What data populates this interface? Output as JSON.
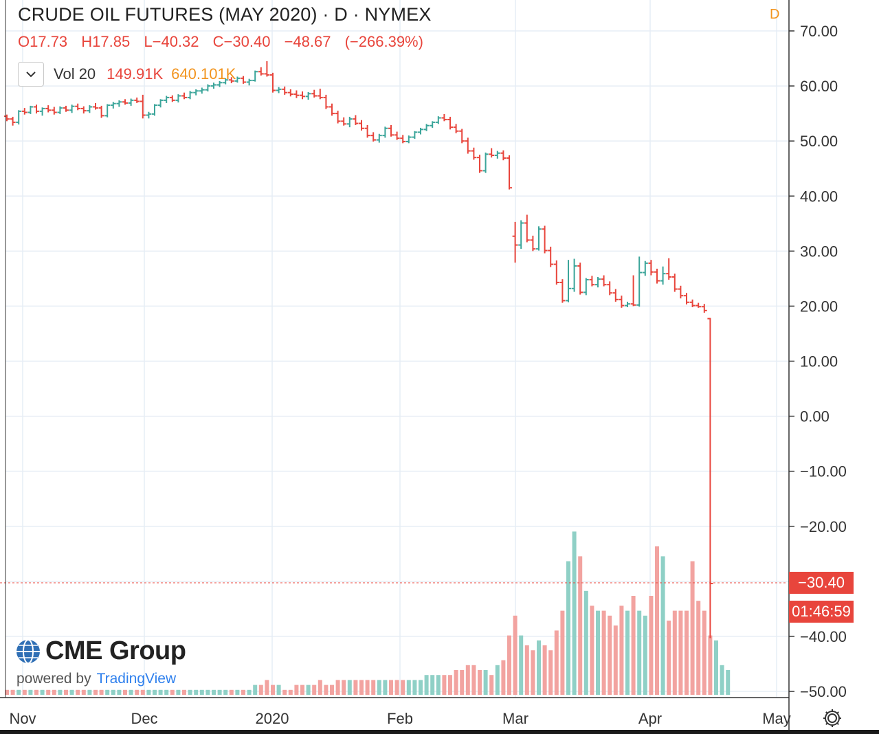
{
  "header": {
    "title": "CRUDE OIL FUTURES (MAY 2020) · D · NYMEX",
    "flag": "D"
  },
  "ohlc": {
    "open": "O17.73",
    "high": "H17.85",
    "low": "L−40.32",
    "close": "C−30.40",
    "change": "−48.67",
    "change_pct": "(−266.39%)"
  },
  "volume": {
    "label": "Vol 20",
    "value": "149.91K",
    "ma": "640.101K"
  },
  "branding": {
    "logo": "CME Group",
    "powered_by": "powered by",
    "tradingview": "TradingView"
  },
  "last_price": {
    "price": "−30.40",
    "countdown": "01:46:59"
  },
  "colors": {
    "up": "#3ba59a",
    "down": "#e8453c",
    "up_vol": "#8fd0c6",
    "down_vol": "#f2a3a0",
    "grid": "#e6edf5",
    "accent": "#f2941e"
  },
  "icons": {
    "toggle": "chevron-down-icon",
    "settings": "gear-icon",
    "logo": "globe-icon"
  },
  "chart_data": {
    "type": "ohlc",
    "ylim": [
      -50,
      70
    ],
    "y_ticks": [
      "70.00",
      "60.00",
      "50.00",
      "40.00",
      "30.00",
      "20.00",
      "10.00",
      "0.00",
      "−10.00",
      "−20.00",
      "−30.00",
      "−40.00",
      "−50.00"
    ],
    "x_ticks": [
      "Nov",
      "Dec",
      "2020",
      "Feb",
      "Mar",
      "Apr",
      "May"
    ],
    "series": [
      {
        "name": "price",
        "values": [
          [
            54.5,
            54.8,
            53.6,
            54.0
          ],
          [
            54.0,
            54.4,
            52.8,
            53.4
          ],
          [
            53.4,
            55.6,
            53.0,
            55.4
          ],
          [
            55.4,
            56.0,
            54.8,
            55.2
          ],
          [
            55.2,
            56.4,
            54.9,
            56.2
          ],
          [
            56.2,
            56.6,
            55.0,
            55.4
          ],
          [
            55.4,
            56.1,
            54.6,
            55.9
          ],
          [
            55.9,
            56.5,
            55.2,
            55.6
          ],
          [
            55.6,
            56.2,
            54.8,
            55.2
          ],
          [
            55.2,
            56.3,
            54.9,
            56.0
          ],
          [
            56.0,
            56.4,
            55.3,
            55.6
          ],
          [
            55.6,
            56.6,
            55.1,
            56.3
          ],
          [
            56.3,
            56.8,
            55.6,
            55.9
          ],
          [
            55.9,
            56.3,
            55.0,
            55.5
          ],
          [
            55.5,
            56.5,
            55.1,
            56.2
          ],
          [
            56.2,
            56.9,
            55.7,
            56.0
          ],
          [
            56.0,
            56.4,
            54.2,
            54.6
          ],
          [
            54.6,
            56.7,
            54.3,
            56.5
          ],
          [
            56.5,
            57.1,
            55.9,
            56.8
          ],
          [
            56.8,
            57.4,
            56.2,
            57.1
          ],
          [
            57.1,
            57.6,
            56.6,
            56.9
          ],
          [
            56.9,
            57.7,
            56.4,
            57.4
          ],
          [
            57.4,
            57.9,
            56.9,
            57.2
          ],
          [
            57.2,
            58.4,
            54.1,
            54.7
          ],
          [
            54.7,
            55.3,
            54.1,
            54.9
          ],
          [
            54.9,
            56.7,
            54.6,
            56.5
          ],
          [
            56.5,
            57.6,
            56.1,
            57.4
          ],
          [
            57.4,
            58.2,
            56.9,
            57.9
          ],
          [
            57.9,
            58.3,
            57.1,
            57.4
          ],
          [
            57.4,
            58.5,
            57.0,
            58.2
          ],
          [
            58.2,
            58.8,
            57.6,
            57.9
          ],
          [
            57.9,
            59.1,
            57.6,
            58.8
          ],
          [
            58.8,
            59.4,
            58.3,
            59.1
          ],
          [
            59.1,
            59.7,
            58.6,
            59.3
          ],
          [
            59.3,
            60.3,
            59.0,
            60.0
          ],
          [
            60.0,
            60.6,
            59.5,
            60.2
          ],
          [
            60.2,
            60.9,
            59.8,
            60.6
          ],
          [
            60.6,
            61.4,
            60.3,
            61.1
          ],
          [
            61.1,
            61.6,
            60.5,
            60.9
          ],
          [
            60.9,
            61.7,
            60.6,
            61.4
          ],
          [
            61.4,
            61.8,
            60.4,
            60.7
          ],
          [
            60.7,
            61.3,
            60.1,
            61.0
          ],
          [
            61.0,
            62.8,
            60.8,
            62.6
          ],
          [
            62.6,
            63.4,
            61.9,
            62.2
          ],
          [
            62.2,
            64.5,
            61.7,
            62.0
          ],
          [
            62.0,
            62.4,
            58.8,
            59.2
          ],
          [
            59.2,
            59.8,
            58.7,
            59.4
          ],
          [
            59.4,
            59.9,
            58.4,
            58.8
          ],
          [
            58.8,
            59.4,
            58.1,
            58.5
          ],
          [
            58.5,
            59.2,
            57.8,
            58.3
          ],
          [
            58.3,
            59.0,
            57.6,
            58.1
          ],
          [
            58.1,
            58.9,
            57.5,
            58.6
          ],
          [
            58.6,
            59.3,
            57.9,
            58.2
          ],
          [
            58.2,
            59.5,
            57.6,
            57.9
          ],
          [
            57.9,
            58.4,
            55.8,
            56.2
          ],
          [
            56.2,
            56.8,
            54.6,
            55.0
          ],
          [
            55.0,
            55.5,
            53.2,
            53.6
          ],
          [
            53.6,
            54.3,
            52.8,
            53.1
          ],
          [
            53.1,
            54.4,
            52.5,
            54.0
          ],
          [
            54.0,
            54.7,
            52.9,
            53.2
          ],
          [
            53.2,
            53.8,
            51.9,
            52.3
          ],
          [
            52.3,
            52.9,
            50.6,
            51.0
          ],
          [
            51.0,
            51.6,
            49.9,
            50.2
          ],
          [
            50.2,
            51.3,
            49.7,
            51.0
          ],
          [
            51.0,
            52.6,
            50.6,
            52.3
          ],
          [
            52.3,
            52.9,
            50.8,
            51.1
          ],
          [
            51.1,
            51.7,
            50.2,
            50.5
          ],
          [
            50.5,
            51.1,
            49.6,
            49.9
          ],
          [
            49.9,
            51.0,
            49.6,
            50.7
          ],
          [
            50.7,
            51.8,
            50.4,
            51.6
          ],
          [
            51.6,
            52.4,
            51.2,
            52.1
          ],
          [
            52.1,
            53.1,
            51.8,
            52.8
          ],
          [
            52.8,
            53.6,
            52.4,
            53.4
          ],
          [
            53.4,
            54.5,
            53.1,
            54.2
          ],
          [
            54.2,
            54.9,
            53.6,
            53.9
          ],
          [
            53.9,
            54.4,
            52.1,
            52.5
          ],
          [
            52.5,
            53.1,
            51.4,
            51.8
          ],
          [
            51.8,
            52.2,
            49.6,
            50.0
          ],
          [
            50.0,
            50.6,
            47.7,
            48.2
          ],
          [
            48.2,
            48.8,
            46.6,
            47.0
          ],
          [
            47.0,
            47.5,
            44.2,
            44.6
          ],
          [
            44.6,
            47.9,
            44.2,
            47.6
          ],
          [
            47.6,
            48.7,
            47.0,
            47.4
          ],
          [
            47.4,
            48.2,
            46.8,
            47.8
          ],
          [
            47.8,
            48.3,
            46.5,
            46.9
          ],
          [
            46.9,
            47.4,
            41.2,
            41.5
          ],
          [
            32.7,
            35.3,
            27.9,
            31.1
          ],
          [
            31.1,
            35.6,
            30.4,
            35.1
          ],
          [
            35.1,
            36.6,
            31.6,
            32.0
          ],
          [
            32.0,
            32.8,
            30.0,
            30.4
          ],
          [
            30.4,
            34.5,
            30.1,
            34.0
          ],
          [
            34.0,
            34.6,
            29.6,
            30.1
          ],
          [
            30.1,
            30.8,
            27.1,
            27.6
          ],
          [
            27.6,
            28.3,
            23.9,
            24.3
          ],
          [
            24.3,
            24.9,
            20.6,
            21.0
          ],
          [
            21.0,
            28.4,
            20.7,
            23.2
          ],
          [
            23.2,
            28.6,
            22.6,
            27.3
          ],
          [
            27.3,
            27.9,
            22.1,
            22.5
          ],
          [
            22.5,
            25.1,
            22.0,
            24.8
          ],
          [
            24.8,
            25.5,
            23.6,
            23.9
          ],
          [
            23.9,
            25.3,
            23.4,
            24.9
          ],
          [
            24.9,
            25.6,
            23.6,
            23.9
          ],
          [
            23.9,
            24.5,
            22.0,
            22.4
          ],
          [
            22.4,
            23.1,
            20.8,
            21.2
          ],
          [
            21.2,
            21.9,
            19.7,
            20.1
          ],
          [
            20.1,
            20.8,
            19.8,
            20.4
          ],
          [
            20.4,
            25.6,
            20.0,
            20.2
          ],
          [
            20.2,
            29.0,
            19.9,
            26.1
          ],
          [
            26.1,
            28.2,
            25.5,
            27.8
          ],
          [
            27.8,
            28.4,
            25.6,
            26.2
          ],
          [
            26.2,
            26.8,
            24.1,
            24.6
          ],
          [
            24.6,
            27.2,
            23.9,
            25.9
          ],
          [
            25.9,
            28.7,
            24.8,
            25.3
          ],
          [
            25.3,
            25.9,
            22.6,
            23.1
          ],
          [
            23.1,
            23.7,
            21.4,
            21.9
          ],
          [
            21.9,
            22.4,
            20.3,
            20.7
          ],
          [
            20.7,
            21.2,
            19.8,
            20.1
          ],
          [
            20.1,
            20.6,
            19.7,
            19.9
          ],
          [
            19.9,
            20.4,
            18.8,
            19.2
          ],
          [
            17.73,
            17.85,
            -40.32,
            -30.4
          ]
        ]
      },
      {
        "name": "Vol 20",
        "values": [
          1,
          1,
          1,
          1,
          1,
          1,
          1,
          1,
          1,
          1,
          1,
          1,
          1,
          1,
          1,
          1,
          1,
          1,
          1,
          1,
          1,
          1,
          1,
          1,
          1,
          1,
          1,
          1,
          1,
          1,
          1,
          1,
          1,
          1,
          1,
          1,
          1,
          1,
          1,
          1,
          1,
          1,
          2,
          2,
          3,
          2,
          2,
          1,
          1,
          2,
          2,
          2,
          2,
          3,
          2,
          2,
          3,
          3,
          3,
          3,
          3,
          3,
          3,
          3,
          3,
          3,
          3,
          3,
          3,
          3,
          3,
          4,
          4,
          4,
          4,
          4,
          5,
          5,
          6,
          6,
          5,
          5,
          4,
          6,
          7,
          12,
          16,
          12,
          10,
          9,
          11,
          10,
          9,
          13,
          17,
          27,
          33,
          28,
          21,
          18,
          17,
          17,
          16,
          14,
          18,
          17,
          20,
          17,
          16,
          20,
          30,
          28,
          15,
          17,
          17,
          17,
          27,
          19,
          17,
          12,
          11,
          6,
          5
        ]
      }
    ]
  }
}
